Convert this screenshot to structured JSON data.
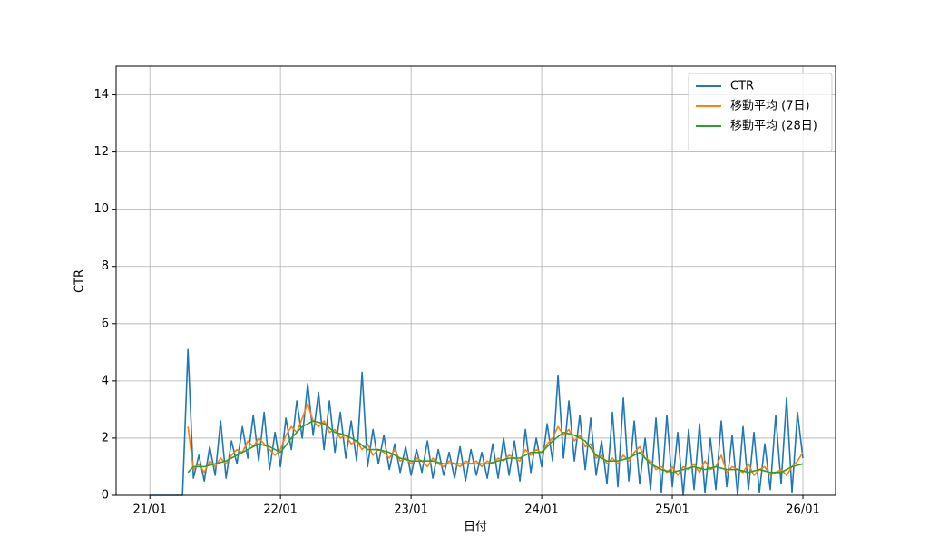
{
  "chart_data": {
    "type": "line",
    "xlabel": "日付",
    "ylabel": "CTR",
    "x": [
      0,
      0.5,
      1,
      1.5,
      2,
      2.5,
      3,
      3.5,
      4,
      4.5,
      5,
      5.5,
      6,
      6.5,
      7,
      7.5,
      8,
      8.5,
      9,
      9.5,
      10,
      10.5,
      11,
      11.5,
      12,
      12.5,
      13,
      13.5,
      14,
      14.5,
      15,
      15.5,
      16,
      16.5,
      17,
      17.5,
      18,
      18.5,
      19,
      19.5,
      20,
      20.5,
      21,
      21.5,
      22,
      22.5,
      23,
      23.5,
      24,
      24.5,
      25,
      25.5,
      26,
      26.5,
      27,
      27.5,
      28,
      28.5,
      29,
      29.5,
      30,
      30.5,
      31,
      31.5,
      32,
      32.5,
      33,
      33.5,
      34,
      34.5,
      35,
      35.5,
      36,
      36.5,
      37,
      37.5,
      38,
      38.5,
      39,
      39.5,
      40,
      40.5,
      41,
      41.5,
      42,
      42.5,
      43,
      43.5,
      44,
      44.5,
      45,
      45.5,
      46,
      46.5,
      47,
      47.5,
      48,
      48.5,
      49,
      49.5,
      50,
      50.5,
      51,
      51.5,
      52,
      52.5,
      53,
      53.5,
      54,
      54.5,
      55,
      55.5,
      56,
      56.5,
      57,
      57.5,
      58,
      58.5,
      59,
      59.5,
      60
    ],
    "series": [
      {
        "name": "CTR",
        "color": "#1f77b4",
        "values": [
          0,
          0,
          0,
          0,
          0,
          0,
          0,
          5.1,
          0.6,
          1.4,
          0.5,
          1.7,
          0.7,
          2.6,
          0.6,
          1.9,
          1.1,
          2.4,
          1.3,
          2.8,
          1.2,
          2.9,
          0.9,
          2.2,
          1.0,
          2.7,
          1.6,
          3.3,
          2.0,
          3.9,
          2.1,
          3.6,
          1.6,
          3.3,
          1.5,
          2.9,
          1.3,
          2.6,
          1.2,
          4.3,
          1.0,
          2.3,
          1.1,
          2.1,
          0.9,
          1.8,
          0.8,
          1.7,
          0.7,
          1.6,
          0.8,
          1.9,
          0.6,
          1.6,
          0.7,
          1.5,
          0.6,
          1.7,
          0.5,
          1.6,
          0.7,
          1.5,
          0.6,
          1.8,
          0.6,
          2.0,
          0.7,
          1.9,
          0.5,
          2.3,
          0.8,
          2.0,
          1.0,
          2.5,
          1.2,
          4.2,
          1.3,
          3.3,
          1.2,
          2.8,
          0.9,
          2.7,
          0.7,
          1.9,
          0.4,
          2.9,
          0.3,
          3.4,
          0.5,
          2.6,
          0.4,
          2.0,
          0.2,
          2.7,
          0.1,
          2.8,
          0.3,
          2.2,
          0,
          2.3,
          0.2,
          2.5,
          0.1,
          2.0,
          0.2,
          2.6,
          0.3,
          2.1,
          0,
          2.4,
          0.2,
          2.2,
          0.1,
          1.8,
          0.2,
          2.8,
          0.4,
          3.4,
          0.1,
          2.9,
          1.3
        ]
      },
      {
        "name": "移動平均 (7日)",
        "color": "#ff7f0e",
        "values": [
          null,
          null,
          null,
          null,
          null,
          null,
          null,
          2.4,
          0.9,
          1.1,
          0.8,
          1.2,
          1.0,
          1.3,
          1.1,
          1.4,
          1.6,
          1.5,
          1.9,
          1.7,
          2.0,
          1.8,
          1.6,
          1.4,
          1.6,
          2.1,
          2.4,
          2.2,
          2.7,
          3.2,
          2.6,
          2.4,
          2.6,
          2.2,
          2.3,
          2.0,
          2.1,
          1.8,
          1.9,
          1.6,
          1.8,
          1.4,
          1.6,
          1.5,
          1.3,
          1.6,
          1.2,
          1.3,
          1.1,
          1.3,
          1.2,
          1.0,
          1.3,
          1.1,
          1.0,
          1.2,
          1.1,
          1.0,
          1.2,
          1.1,
          1.2,
          1.0,
          1.2,
          1.1,
          1.3,
          1.2,
          1.4,
          1.3,
          1.2,
          1.6,
          1.4,
          1.6,
          1.5,
          1.8,
          2.0,
          2.4,
          2.1,
          2.3,
          1.9,
          2.1,
          1.7,
          1.8,
          1.3,
          1.4,
          1.1,
          1.3,
          1.1,
          1.4,
          1.2,
          1.5,
          1.7,
          1.3,
          1.2,
          0.9,
          1.0,
          0.8,
          1.0,
          0.7,
          1.0,
          0.9,
          1.1,
          0.8,
          1.2,
          0.9,
          1.0,
          1.4,
          0.8,
          1.0,
          0.9,
          0.8,
          1.1,
          0.7,
          0.9,
          1.0,
          0.7,
          0.8,
          0.9,
          0.7,
          1.0,
          1.2,
          1.5
        ]
      },
      {
        "name": "移動平均 (28日)",
        "color": "#2ca02c",
        "values": [
          null,
          null,
          null,
          null,
          null,
          null,
          null,
          0.8,
          1.0,
          1.0,
          1.0,
          1.05,
          1.1,
          1.15,
          1.2,
          1.3,
          1.4,
          1.5,
          1.6,
          1.7,
          1.8,
          1.75,
          1.7,
          1.6,
          1.5,
          1.75,
          2.0,
          2.2,
          2.4,
          2.5,
          2.6,
          2.55,
          2.5,
          2.35,
          2.2,
          2.15,
          2.1,
          2.0,
          1.9,
          1.75,
          1.6,
          1.6,
          1.6,
          1.55,
          1.5,
          1.4,
          1.3,
          1.25,
          1.2,
          1.2,
          1.2,
          1.2,
          1.2,
          1.15,
          1.1,
          1.1,
          1.1,
          1.1,
          1.1,
          1.1,
          1.1,
          1.1,
          1.1,
          1.15,
          1.2,
          1.25,
          1.3,
          1.3,
          1.3,
          1.4,
          1.5,
          1.5,
          1.5,
          1.7,
          1.9,
          2.05,
          2.2,
          2.15,
          2.1,
          2.0,
          1.9,
          1.65,
          1.4,
          1.3,
          1.2,
          1.2,
          1.2,
          1.25,
          1.3,
          1.4,
          1.5,
          1.3,
          1.1,
          1.0,
          0.9,
          0.85,
          0.8,
          0.85,
          0.9,
          0.95,
          1.0,
          0.95,
          0.9,
          0.95,
          1.0,
          0.95,
          0.9,
          0.9,
          0.9,
          0.85,
          0.8,
          0.85,
          0.9,
          0.85,
          0.8,
          0.8,
          0.8,
          0.9,
          1.0,
          1.05,
          1.1
        ]
      }
    ],
    "xlim": [
      -3.1,
      63
    ],
    "xticks": [
      {
        "value": 0,
        "label": "21/01"
      },
      {
        "value": 12,
        "label": "22/01"
      },
      {
        "value": 24,
        "label": "23/01"
      },
      {
        "value": 36,
        "label": "24/01"
      },
      {
        "value": 48,
        "label": "25/01"
      },
      {
        "value": 60,
        "label": "26/01"
      }
    ],
    "ylim": [
      0,
      15
    ],
    "yticks": [
      0,
      2,
      4,
      6,
      8,
      10,
      12,
      14
    ],
    "grid": true,
    "legend": "upper right"
  }
}
